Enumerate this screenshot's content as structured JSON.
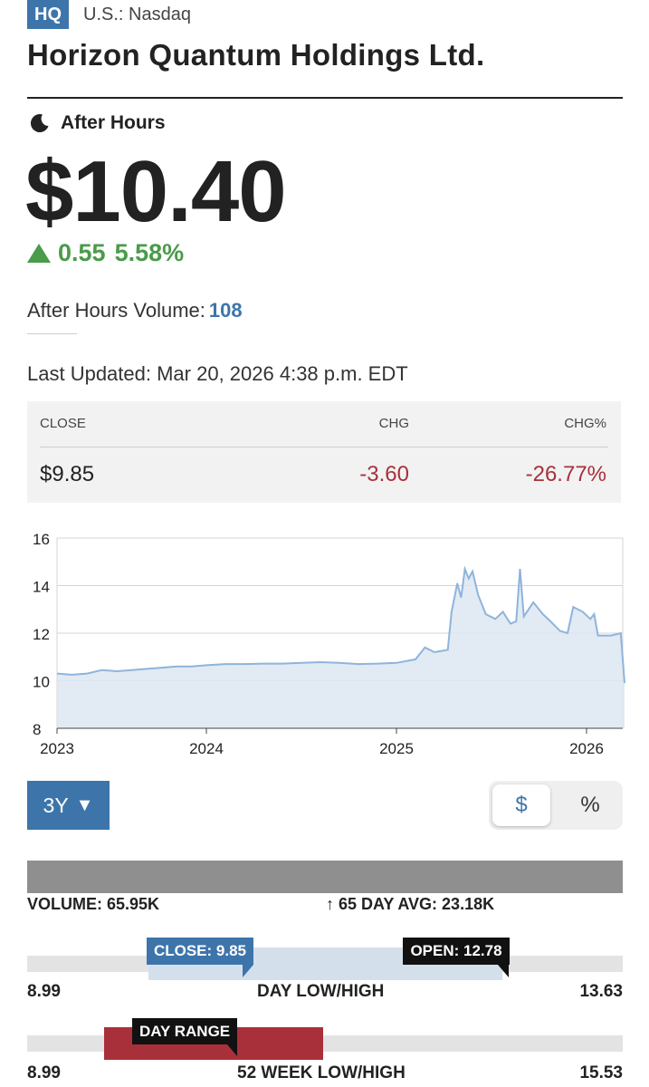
{
  "header": {
    "ticker": "HQ",
    "exchange": "U.S.: Nasdaq",
    "company": "Horizon Quantum Holdings Ltd."
  },
  "quote": {
    "session_label": "After Hours",
    "session_icon": "moon-icon",
    "price": "$10.40",
    "change": "0.55",
    "change_pct": "5.58%",
    "change_direction_icon": "triangle-up-icon",
    "after_hours_volume_label": "After Hours Volume:",
    "after_hours_volume": "108",
    "last_updated": "Last Updated: Mar 20, 2026 4:38 p.m. EDT"
  },
  "close_table": {
    "headers": [
      "CLOSE",
      "CHG",
      "CHG%"
    ],
    "values": [
      "$9.85",
      "-3.60",
      "-26.77%"
    ]
  },
  "colors": {
    "brand_blue": "#3d75ab",
    "positive_green": "#4a9b4a",
    "negative_red": "#a8303a",
    "chart_line": "#8fb4dc",
    "chart_fill": "#dde7f1"
  },
  "chart_data": {
    "type": "area",
    "title": "",
    "xlabel": "",
    "ylabel": "",
    "y_ticks": [
      16,
      14,
      12,
      10,
      8
    ],
    "ylim": [
      8,
      16
    ],
    "x_ticks": [
      "2023",
      "2024",
      "2025",
      "2026"
    ],
    "grid": true,
    "series": [
      {
        "points": [
          [
            2023.0,
            10.3
          ],
          [
            2023.1,
            10.25
          ],
          [
            2023.2,
            10.3
          ],
          [
            2023.3,
            10.45
          ],
          [
            2023.4,
            10.4
          ],
          [
            2023.5,
            10.45
          ],
          [
            2023.6,
            10.5
          ],
          [
            2023.7,
            10.55
          ],
          [
            2023.8,
            10.6
          ],
          [
            2023.9,
            10.6
          ],
          [
            2024.0,
            10.65
          ],
          [
            2024.1,
            10.7
          ],
          [
            2024.2,
            10.7
          ],
          [
            2024.3,
            10.72
          ],
          [
            2024.4,
            10.72
          ],
          [
            2024.5,
            10.75
          ],
          [
            2024.6,
            10.78
          ],
          [
            2024.7,
            10.75
          ],
          [
            2024.8,
            10.7
          ],
          [
            2024.9,
            10.72
          ],
          [
            2025.0,
            10.75
          ],
          [
            2025.1,
            10.9
          ],
          [
            2025.15,
            11.4
          ],
          [
            2025.2,
            11.2
          ],
          [
            2025.27,
            11.3
          ],
          [
            2025.29,
            12.9
          ],
          [
            2025.32,
            14.1
          ],
          [
            2025.34,
            13.5
          ],
          [
            2025.36,
            14.7
          ],
          [
            2025.38,
            14.3
          ],
          [
            2025.4,
            14.6
          ],
          [
            2025.43,
            13.6
          ],
          [
            2025.47,
            12.8
          ],
          [
            2025.52,
            12.6
          ],
          [
            2025.56,
            12.9
          ],
          [
            2025.6,
            12.4
          ],
          [
            2025.63,
            12.5
          ],
          [
            2025.65,
            14.7
          ],
          [
            2025.67,
            12.7
          ],
          [
            2025.72,
            13.3
          ],
          [
            2025.77,
            12.8
          ],
          [
            2025.81,
            12.5
          ],
          [
            2025.86,
            12.1
          ],
          [
            2025.9,
            12.0
          ],
          [
            2025.93,
            13.1
          ],
          [
            2025.98,
            12.9
          ],
          [
            2026.02,
            12.6
          ],
          [
            2026.04,
            12.8
          ],
          [
            2026.06,
            11.9
          ],
          [
            2026.13,
            11.9
          ],
          [
            2026.18,
            12.0
          ],
          [
            2026.2,
            9.9
          ]
        ]
      }
    ]
  },
  "controls": {
    "range_label": "3Y",
    "range_caret": "▼",
    "toggle_dollar": "$",
    "toggle_percent": "%"
  },
  "volume": {
    "label": "VOLUME: 65.95K",
    "avg_label": "↑ 65 DAY AVG: 23.18K"
  },
  "day_range": {
    "low": "8.99",
    "high": "13.63",
    "label": "DAY LOW/HIGH",
    "close_tag": "CLOSE: 9.85",
    "open_tag": "OPEN: 12.78",
    "low_value": 8.99,
    "high_value": 13.63,
    "close_value": 9.85,
    "open_value": 12.78
  },
  "week52": {
    "low": "8.99",
    "high": "15.53",
    "label": "52 WEEK LOW/HIGH",
    "day_range_tag": "DAY RANGE",
    "low_value": 8.99,
    "high_value": 15.53
  }
}
